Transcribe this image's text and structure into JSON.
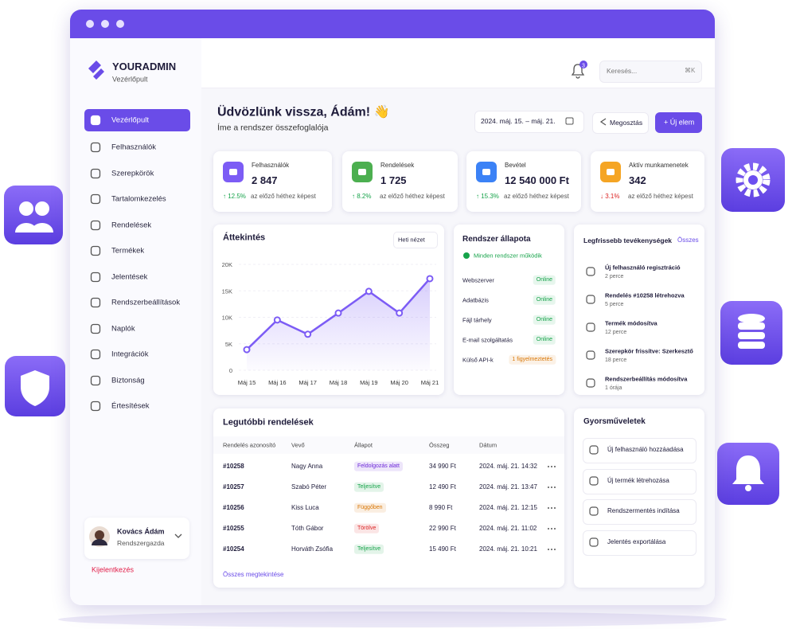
{
  "brand": {
    "name": "YOURADMIN",
    "subtitle": "Vezérlőpult"
  },
  "topbar": {
    "notifications": 3,
    "search_placeholder": "Keresés...",
    "search_shortcut": "⌘K"
  },
  "nav": [
    "Vezérlőpult",
    "Felhasználók",
    "Szerepkörök",
    "Tartalomkezelés",
    "Rendelések",
    "Termékek",
    "Jelentések",
    "Rendszerbeállítások",
    "Naplók",
    "Integrációk",
    "Biztonság",
    "Értesítések"
  ],
  "user": {
    "name": "Kovács Ádám",
    "role": "Rendszergazda",
    "logout": "Kijelentkezés"
  },
  "header": {
    "title": "Üdvözlünk vissza, Ádám! 👋",
    "subtitle": "Íme a rendszer összefoglalója",
    "date_range": "2024. máj. 15. – máj. 21.",
    "share": "Megosztás",
    "new_item": "+ Új elem"
  },
  "stats": [
    {
      "label": "Felhasználók",
      "value": "2 847",
      "change": "↑ 12.5%",
      "note": "az előző héthez képest",
      "color": "#7c5cf5",
      "change_color": "#16a34a"
    },
    {
      "label": "Rendelések",
      "value": "1 725",
      "change": "↑ 8.2%",
      "note": "az előző héthez képest",
      "color": "#4caf50",
      "change_color": "#16a34a"
    },
    {
      "label": "Bevétel",
      "value": "12 540 000 Ft",
      "change": "↑ 15.3%",
      "note": "az előző héthez képest",
      "color": "#3b82f6",
      "change_color": "#16a34a"
    },
    {
      "label": "Aktív munkamenetek",
      "value": "342",
      "change": "↓ 3.1%",
      "note": "az előző héthez képest",
      "color": "#f5a524",
      "change_color": "#dc2626"
    }
  ],
  "overview_view": "Heti nézet",
  "chart_data": {
    "type": "line",
    "title": "Áttekintés",
    "categories": [
      "Máj 15",
      "Máj 16",
      "Máj 17",
      "Máj 18",
      "Máj 19",
      "Máj 20",
      "Máj 21"
    ],
    "values": [
      3900,
      9500,
      6800,
      10800,
      14900,
      10800,
      17300
    ],
    "color": "#7c5cf5",
    "ylim": [
      0,
      20000
    ],
    "yticks": [
      0,
      {
        "value": 5000,
        "label": "5K"
      },
      {
        "value": 10000,
        "label": "10K"
      },
      {
        "value": 15000,
        "label": "15K"
      },
      {
        "value": 20000,
        "label": "20K"
      }
    ],
    "grid": true
  },
  "system_status": {
    "title": "Rendszer állapota",
    "summary": "Minden rendszer működik",
    "items": [
      {
        "name": "Webszerver",
        "status": "Online",
        "color": "#16a34a"
      },
      {
        "name": "Adatbázis",
        "status": "Online",
        "color": "#16a34a"
      },
      {
        "name": "Fájl tárhely",
        "status": "Online",
        "color": "#16a34a"
      },
      {
        "name": "E-mail szolgáltatás",
        "status": "Online",
        "color": "#16a34a"
      },
      {
        "name": "Külső API-k",
        "status": "1 figyelmeztetés",
        "color": "#d97706"
      }
    ]
  },
  "activity": {
    "title": "Legfrissebb tevékenységek",
    "link": "Összes",
    "items": [
      {
        "title": "Új felhasználó regisztráció",
        "time": "2 perce"
      },
      {
        "title": "Rendelés #10258 létrehozva",
        "time": "5 perce"
      },
      {
        "title": "Termék módosítva",
        "time": "12 perce"
      },
      {
        "title": "Szerepkör frissítve: Szerkesztő",
        "time": "18 perce"
      },
      {
        "title": "Rendszerbeállítás módosítva",
        "time": "1 órája"
      }
    ]
  },
  "orders": {
    "title": "Legutóbbi rendelések",
    "columns": [
      "Rendelés azonosító",
      "Vevő",
      "Állapot",
      "Összeg",
      "Dátum"
    ],
    "rows": [
      [
        "#10258",
        "Nagy Anna",
        "Feldolgozás alatt",
        "34 990 Ft",
        "2024. máj. 21. 14:32"
      ],
      [
        "#10257",
        "Szabó Péter",
        "Teljesítve",
        "12 490 Ft",
        "2024. máj. 21. 13:47"
      ],
      [
        "#10256",
        "Kiss Luca",
        "Függőben",
        "8 990 Ft",
        "2024. máj. 21. 12:15"
      ],
      [
        "#10255",
        "Tóth Gábor",
        "Törölve",
        "22 990 Ft",
        "2024. máj. 21. 11:02"
      ],
      [
        "#10254",
        "Horváth Zsófia",
        "Teljesítve",
        "15 490 Ft",
        "2024. máj. 21. 10:21"
      ]
    ],
    "status_colors": [
      "#6d28d9",
      "#16a34a",
      "#d97706",
      "#dc2626",
      "#16a34a"
    ],
    "link": "Összes megtekintése"
  },
  "quick_actions": {
    "title": "Gyorsműveletek",
    "items": [
      "Új felhasználó hozzáadása",
      "Új termék létrehozása",
      "Rendszermentés indítása",
      "Jelentés exportálása"
    ]
  }
}
